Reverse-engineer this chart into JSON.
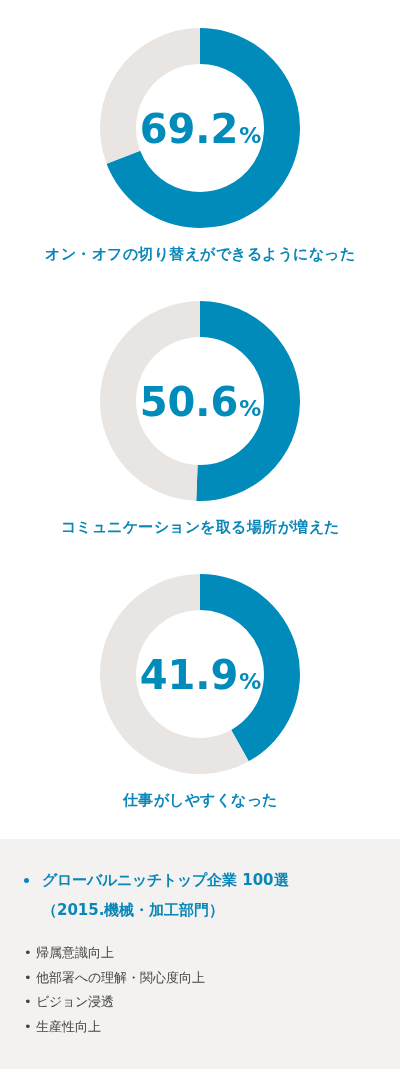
{
  "chart_data": [
    {
      "type": "donut",
      "title": "オン・オフの切り替えができるようになった",
      "categories": [
        null,
        null
      ],
      "values": [
        69.2,
        30.8
      ],
      "colors": [
        "#008bbb",
        "#e8e5e3"
      ],
      "value_labels": [
        "69.2%",
        null
      ]
    },
    {
      "type": "donut",
      "title": "コミュニケーションを取る場所が増えた",
      "categories": [
        null,
        null
      ],
      "values": [
        50.6,
        49.4
      ],
      "colors": [
        "#008bbb",
        "#e8e5e3"
      ],
      "value_labels": [
        "50.6%",
        null
      ]
    },
    {
      "type": "donut",
      "title": "仕事がしやすくなった",
      "categories": [
        null,
        null
      ],
      "values": [
        41.9,
        58.1
      ],
      "colors": [
        "#008bbb",
        "#e8e5e3"
      ],
      "value_labels": [
        "41.9%",
        null
      ]
    },
    {
      "type": "other",
      "title": "グローバルニッチトップ企業 100選（2015.機械・加工部門）",
      "annotations": [
        "• 帰属意識向上",
        "• 他部署への理解・関心度向上",
        "• ビジョン浸透",
        "• 生産性向上"
      ]
    }
  ]
}
